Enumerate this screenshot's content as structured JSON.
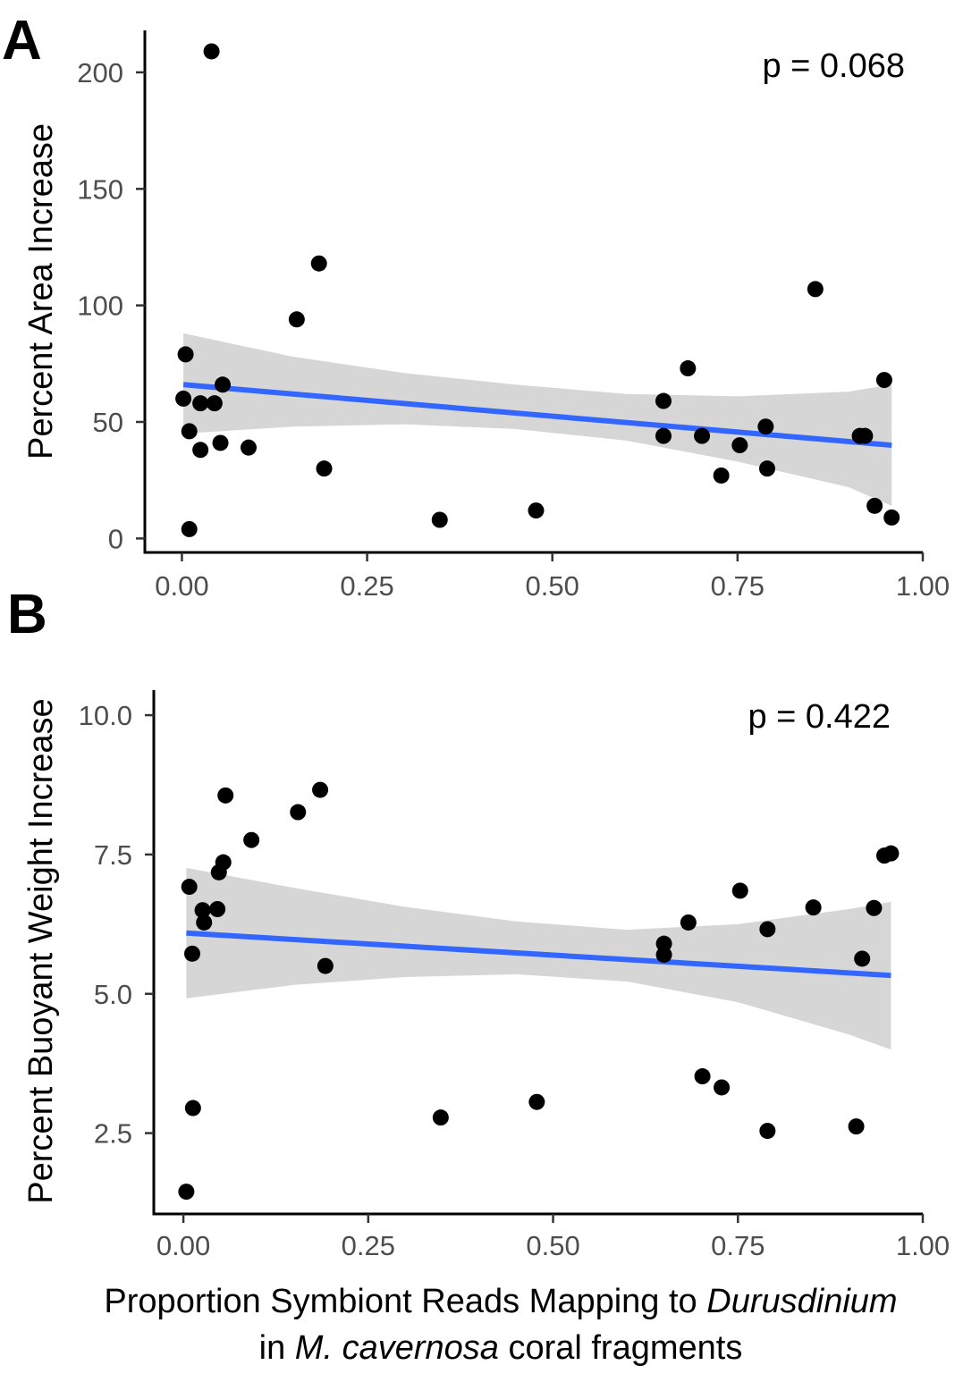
{
  "xlabel": {
    "line1_prefix": "Proportion Symbiont Reads Mapping to ",
    "line1_italic": "Durusdinium",
    "line2_prefix": "in ",
    "line2_italic": "M. cavernosa",
    "line2_suffix": " coral fragments"
  },
  "chart_data": [
    {
      "type": "scatter",
      "panel_label": "A",
      "ylabel": "Percent Area Increase",
      "annotation": "p = 0.068",
      "xlim": [
        -0.05,
        1.0
      ],
      "ylim": [
        -6,
        218
      ],
      "x_ticks": [
        0.0,
        0.25,
        0.5,
        0.75,
        1.0
      ],
      "x_tick_labels": [
        "0.00",
        "0.25",
        "0.50",
        "0.75",
        "1.00"
      ],
      "y_ticks": [
        0,
        50,
        100,
        150,
        200
      ],
      "y_tick_labels": [
        "0",
        "50",
        "100",
        "150",
        "200"
      ],
      "points": [
        {
          "x": 0.04,
          "y": 209
        },
        {
          "x": 0.002,
          "y": 60
        },
        {
          "x": 0.005,
          "y": 79
        },
        {
          "x": 0.01,
          "y": 46
        },
        {
          "x": 0.01,
          "y": 4
        },
        {
          "x": 0.025,
          "y": 58
        },
        {
          "x": 0.025,
          "y": 38
        },
        {
          "x": 0.044,
          "y": 58
        },
        {
          "x": 0.052,
          "y": 41
        },
        {
          "x": 0.055,
          "y": 66
        },
        {
          "x": 0.09,
          "y": 39
        },
        {
          "x": 0.155,
          "y": 94
        },
        {
          "x": 0.185,
          "y": 118
        },
        {
          "x": 0.192,
          "y": 30
        },
        {
          "x": 0.348,
          "y": 8
        },
        {
          "x": 0.478,
          "y": 12
        },
        {
          "x": 0.65,
          "y": 59
        },
        {
          "x": 0.65,
          "y": 44
        },
        {
          "x": 0.683,
          "y": 73
        },
        {
          "x": 0.702,
          "y": 44
        },
        {
          "x": 0.728,
          "y": 27
        },
        {
          "x": 0.753,
          "y": 40
        },
        {
          "x": 0.788,
          "y": 48
        },
        {
          "x": 0.79,
          "y": 30
        },
        {
          "x": 0.855,
          "y": 107
        },
        {
          "x": 0.915,
          "y": 44
        },
        {
          "x": 0.922,
          "y": 44
        },
        {
          "x": 0.935,
          "y": 14
        },
        {
          "x": 0.948,
          "y": 68
        },
        {
          "x": 0.958,
          "y": 9
        }
      ],
      "fit": {
        "x": [
          0.002,
          0.958
        ],
        "y": [
          66,
          40
        ]
      },
      "confidence_band": {
        "x": [
          0.002,
          0.15,
          0.3,
          0.45,
          0.6,
          0.75,
          0.9,
          0.958
        ],
        "upper": [
          88,
          78,
          71,
          66,
          62,
          61,
          63,
          66
        ],
        "lower": [
          45,
          48,
          49,
          47,
          42,
          33,
          22,
          14
        ]
      }
    },
    {
      "type": "scatter",
      "panel_label": "B",
      "ylabel": "Percent Buoyant Weight Increase",
      "annotation": "p = 0.422",
      "xlim": [
        -0.04,
        1.0
      ],
      "ylim": [
        1.05,
        10.45
      ],
      "x_ticks": [
        0.0,
        0.25,
        0.5,
        0.75,
        1.0
      ],
      "x_tick_labels": [
        "0.00",
        "0.25",
        "0.50",
        "0.75",
        "1.00"
      ],
      "y_ticks": [
        2.5,
        5.0,
        7.5,
        10.0
      ],
      "y_tick_labels": [
        "2.5",
        "5.0",
        "7.5",
        "10.0"
      ],
      "points": [
        {
          "x": 0.004,
          "y": 1.45
        },
        {
          "x": 0.008,
          "y": 6.92
        },
        {
          "x": 0.012,
          "y": 5.72
        },
        {
          "x": 0.013,
          "y": 2.95
        },
        {
          "x": 0.026,
          "y": 6.5
        },
        {
          "x": 0.028,
          "y": 6.28
        },
        {
          "x": 0.046,
          "y": 6.52
        },
        {
          "x": 0.048,
          "y": 7.18
        },
        {
          "x": 0.054,
          "y": 7.36
        },
        {
          "x": 0.057,
          "y": 8.56
        },
        {
          "x": 0.092,
          "y": 7.76
        },
        {
          "x": 0.155,
          "y": 8.26
        },
        {
          "x": 0.185,
          "y": 8.66
        },
        {
          "x": 0.192,
          "y": 5.5
        },
        {
          "x": 0.348,
          "y": 2.78
        },
        {
          "x": 0.478,
          "y": 3.06
        },
        {
          "x": 0.65,
          "y": 5.9
        },
        {
          "x": 0.65,
          "y": 5.7
        },
        {
          "x": 0.683,
          "y": 6.28
        },
        {
          "x": 0.702,
          "y": 3.52
        },
        {
          "x": 0.728,
          "y": 3.32
        },
        {
          "x": 0.753,
          "y": 6.85
        },
        {
          "x": 0.79,
          "y": 6.16
        },
        {
          "x": 0.79,
          "y": 2.54
        },
        {
          "x": 0.852,
          "y": 6.55
        },
        {
          "x": 0.91,
          "y": 2.62
        },
        {
          "x": 0.918,
          "y": 5.63
        },
        {
          "x": 0.934,
          "y": 6.54
        },
        {
          "x": 0.948,
          "y": 7.48
        },
        {
          "x": 0.957,
          "y": 7.52
        }
      ],
      "fit": {
        "x": [
          0.004,
          0.957
        ],
        "y": [
          6.09,
          5.33
        ]
      },
      "confidence_band": {
        "x": [
          0.004,
          0.15,
          0.3,
          0.45,
          0.6,
          0.75,
          0.9,
          0.957
        ],
        "upper": [
          7.26,
          6.9,
          6.56,
          6.3,
          6.15,
          6.25,
          6.52,
          6.65
        ],
        "lower": [
          4.92,
          5.16,
          5.3,
          5.35,
          5.22,
          4.85,
          4.27,
          4.0
        ]
      }
    }
  ]
}
